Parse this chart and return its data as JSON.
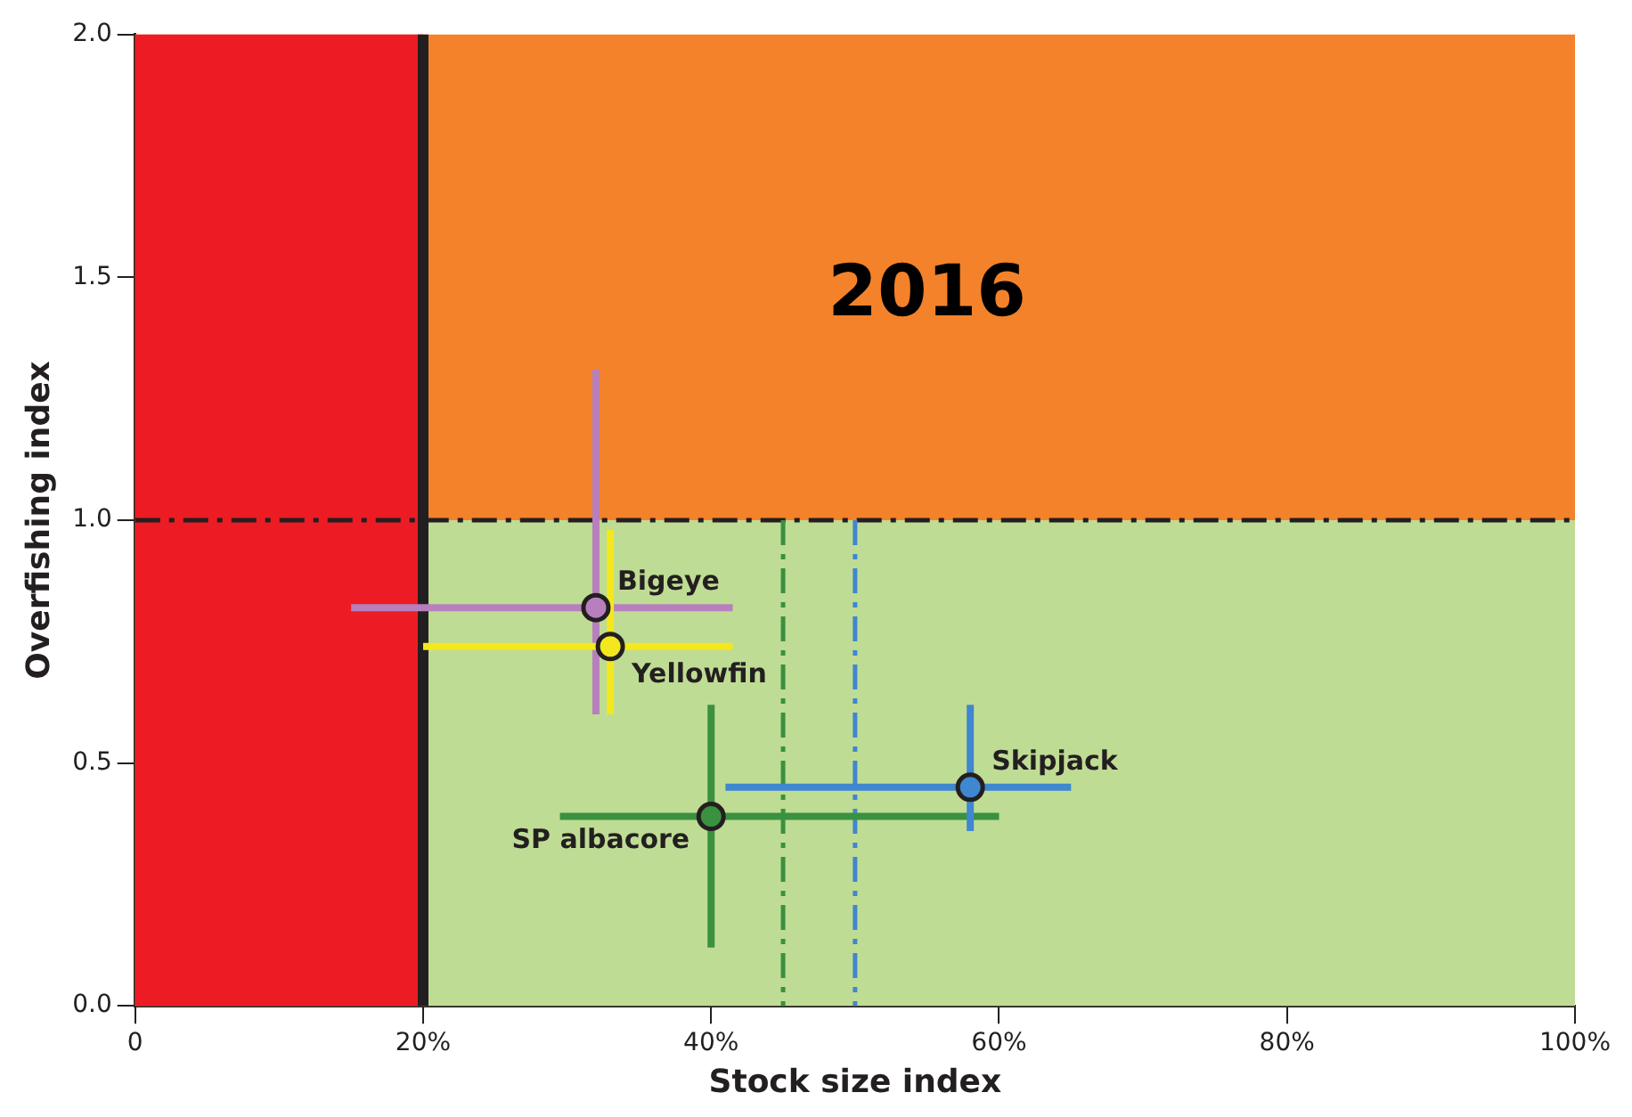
{
  "chart_data": {
    "type": "scatter",
    "title": "2016",
    "xlabel": "Stock size index",
    "ylabel": "Overfishing index",
    "xlim": [
      0,
      100
    ],
    "ylim": [
      0,
      2
    ],
    "xticks": [
      {
        "value": 0,
        "label": "0"
      },
      {
        "value": 20,
        "label": "20%"
      },
      {
        "value": 40,
        "label": "40%"
      },
      {
        "value": 60,
        "label": "60%"
      },
      {
        "value": 80,
        "label": "80%"
      },
      {
        "value": 100,
        "label": "100%"
      }
    ],
    "yticks": [
      {
        "value": 0,
        "label": "0.0"
      },
      {
        "value": 0.5,
        "label": "0.5"
      },
      {
        "value": 1,
        "label": "1.0"
      },
      {
        "value": 1.5,
        "label": "1.5"
      },
      {
        "value": 2,
        "label": "2.0"
      }
    ],
    "grid": false,
    "legend": false,
    "marker": "circle",
    "bands": [
      {
        "axis": "y",
        "from": 1,
        "to": 2,
        "color": "#f4822a"
      },
      {
        "axis": "y",
        "from": 0,
        "to": 1,
        "color": "#bfdc94"
      },
      {
        "axis": "x",
        "from": 0,
        "to": 20,
        "color": "#ed1c24"
      }
    ],
    "ref_lines": [
      {
        "axis": "x",
        "value": 20,
        "color": "#231f20",
        "line_style": "solid"
      },
      {
        "axis": "y",
        "value": 1,
        "color": "#231f20",
        "line_style": "dashed"
      },
      {
        "axis": "x",
        "value": 45,
        "color": "#3a9140",
        "line_style": "dashed"
      },
      {
        "axis": "x",
        "value": 50,
        "color": "#3f87d0",
        "line_style": "dashed"
      }
    ],
    "series": [
      {
        "name": "Bigeye",
        "color": "#b77fbd",
        "x": [
          32
        ],
        "values": [
          0.82
        ],
        "errors": [
          [
            0.6,
            1.31
          ]
        ],
        "xerrors": [
          [
            15,
            41.5
          ]
        ]
      },
      {
        "name": "Yellowfin",
        "color": "#f2e81d",
        "x": [
          33
        ],
        "values": [
          0.74
        ],
        "errors": [
          [
            0.6,
            0.98
          ]
        ],
        "xerrors": [
          [
            20,
            41.5
          ]
        ]
      },
      {
        "name": "SP albacore",
        "color": "#3a9140",
        "x": [
          40
        ],
        "values": [
          0.39
        ],
        "errors": [
          [
            0.12,
            0.62
          ]
        ],
        "xerrors": [
          [
            29.5,
            60
          ]
        ]
      },
      {
        "name": "Skipjack",
        "color": "#3f87d0",
        "x": [
          58
        ],
        "values": [
          0.45
        ],
        "errors": [
          [
            0.36,
            0.62
          ]
        ],
        "xerrors": [
          [
            41,
            65
          ]
        ]
      }
    ]
  }
}
